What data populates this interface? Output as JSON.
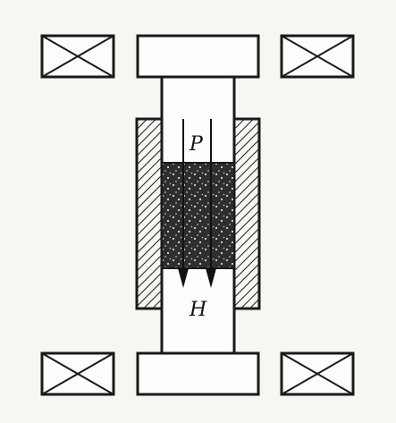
{
  "diagram": {
    "labels": {
      "top_label": "P",
      "bottom_label": "H"
    },
    "colors": {
      "background": "#f7f6f3",
      "stroke": "#1a1a1a",
      "sample_fill": "#2e2e2e",
      "hatch": "#1a1a1a",
      "white": "#fdfdfc"
    },
    "parts": [
      "coil-top-left",
      "coil-top-right",
      "coil-bottom-left",
      "coil-bottom-right",
      "top-anvil-cap",
      "bottom-anvil-cap",
      "piston-column",
      "left-die-wall",
      "right-die-wall",
      "powder-sample",
      "pressure-arrows",
      "field-arrows"
    ]
  }
}
